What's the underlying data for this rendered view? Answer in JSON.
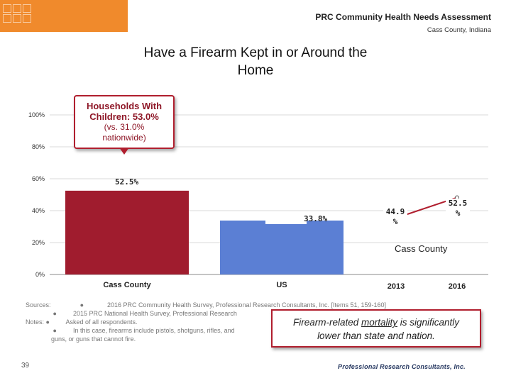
{
  "header": {
    "title": "PRC Community Health Needs Assessment",
    "subtitle": "Cass County, Indiana"
  },
  "colors": {
    "logo": "#f08a2c",
    "cass_bar": "#a01c2e",
    "us_bar": "#5b7fd4",
    "trend_line": "#b01e2e",
    "callout_border": "#b01e2e"
  },
  "chart_data": [
    {
      "type": "bar",
      "title": "Have a Firearm Kept in or Around the Home",
      "categories": [
        "Cass County",
        "US"
      ],
      "values": [
        52.5,
        33.8
      ],
      "value_labels": [
        "52.5%",
        "33.8%"
      ],
      "ylim": [
        0,
        100
      ],
      "yticks": [
        0,
        20,
        40,
        60,
        80,
        100
      ],
      "ytick_labels": [
        "0%",
        "20%",
        "40%",
        "60%",
        "80%",
        "100%"
      ],
      "grid": true,
      "xlabel": "",
      "ylabel": ""
    },
    {
      "type": "line",
      "x": [
        "2013",
        "2016"
      ],
      "series": [
        {
          "name": "Cass County",
          "values": [
            44.9,
            52.5
          ],
          "value_labels": [
            "44.9 %",
            "52.5 %"
          ]
        }
      ],
      "ylim": [
        0,
        100
      ]
    }
  ],
  "callout": {
    "line1": "Households With",
    "line2": "Children:  53.0%",
    "line3": "(vs. 31.0%",
    "line4": "nationwide)"
  },
  "notes": {
    "sources_label": "Sources:",
    "source1": "2016 PRC Community Health Survey, Professional Research Consultants, Inc. [Items 51, 159-160]",
    "source2": "2015 PRC National Health Survey, Professional Research",
    "notes_label": "Notes:",
    "note1": "Asked of all respondents.",
    "note2": "In this case, firearms include pistols, shotguns, rifles, and",
    "note2_cont": "guns, or guns that cannot fire.",
    "bullet": "●"
  },
  "finding": {
    "pre": "Firearm-related ",
    "underlined": "mortality",
    "post": " is significantly",
    "line2": "lower than state and nation."
  },
  "footer": {
    "page": "39",
    "brand": "Professional Research Consultants, Inc."
  }
}
